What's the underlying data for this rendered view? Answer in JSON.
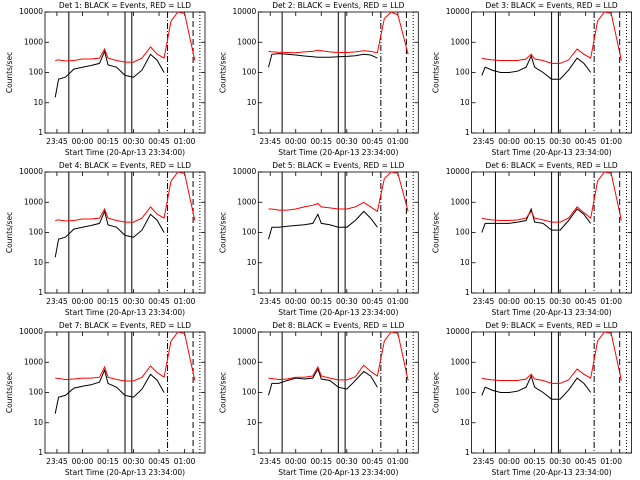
{
  "chart_data": [
    {
      "type": "line",
      "title": "Det 1: BLACK = Events, RED = LLD",
      "ylabel": "Counts/sec",
      "xlabel": "Start Time (20-Apr-13 23:34:00)",
      "log_y": true,
      "x": [
        "23:44",
        "23:46",
        "23:50",
        "23:55",
        "00:00",
        "00:05",
        "00:10",
        "00:13",
        "00:15",
        "00:20",
        "00:25",
        "00:30",
        "00:35",
        "00:40",
        "00:44",
        "00:48",
        "00:52",
        "00:56",
        "01:00",
        "01:06"
      ],
      "series": [
        {
          "color": "#000000",
          "values": [
            15,
            60,
            70,
            130,
            150,
            170,
            200,
            500,
            180,
            150,
            80,
            70,
            120,
            400,
            250,
            100,
            null,
            null,
            null,
            null
          ]
        },
        {
          "color": "#ff0000",
          "values": [
            250,
            260,
            240,
            250,
            280,
            280,
            300,
            600,
            300,
            250,
            220,
            220,
            300,
            700,
            400,
            300,
            5000,
            10000,
            9000,
            250
          ]
        }
      ],
      "xlim": [
        "23:38",
        "01:12"
      ],
      "xticks": [
        "23:45",
        "00:00",
        "00:15",
        "00:30",
        "00:45",
        "01:00"
      ],
      "ylim": [
        1,
        10000
      ],
      "yticks": [
        1,
        10,
        100,
        1000,
        10000
      ],
      "vlines": [
        {
          "x": "23:52",
          "dash": "solid"
        },
        {
          "x": "00:25",
          "dash": "solid"
        },
        {
          "x": "00:29",
          "dash": "solid"
        },
        {
          "x": "00:50",
          "dash": "6 2 1 2"
        },
        {
          "x": "01:05",
          "dash": "6 3"
        },
        {
          "x": "01:09",
          "dash": "1 2"
        }
      ]
    },
    {
      "type": "line",
      "title": "Det 2: BLACK = Events, RED = LLD",
      "ylabel": "Counts/sec",
      "xlabel": "Start Time (20-Apr-13 23:34:00)",
      "log_y": true,
      "x": [
        "23:44",
        "23:46",
        "23:50",
        "23:55",
        "00:00",
        "00:05",
        "00:10",
        "00:13",
        "00:15",
        "00:20",
        "00:25",
        "00:30",
        "00:35",
        "00:40",
        "00:44",
        "00:48",
        "00:52",
        "00:56",
        "01:00",
        "01:06"
      ],
      "series": [
        {
          "color": "#000000",
          "values": [
            150,
            400,
            420,
            400,
            380,
            350,
            330,
            320,
            320,
            320,
            330,
            340,
            360,
            400,
            380,
            300,
            null,
            null,
            null,
            null
          ]
        },
        {
          "color": "#ff0000",
          "values": [
            500,
            480,
            470,
            460,
            450,
            480,
            500,
            550,
            520,
            480,
            460,
            460,
            480,
            520,
            500,
            450,
            6000,
            10000,
            8000,
            400
          ]
        }
      ],
      "xlim": [
        "23:38",
        "01:12"
      ],
      "xticks": [
        "23:45",
        "00:00",
        "00:15",
        "00:30",
        "00:45",
        "01:00"
      ],
      "ylim": [
        1,
        10000
      ],
      "yticks": [
        1,
        10,
        100,
        1000,
        10000
      ],
      "vlines": [
        {
          "x": "23:52",
          "dash": "solid"
        },
        {
          "x": "00:25",
          "dash": "solid"
        },
        {
          "x": "00:29",
          "dash": "solid"
        },
        {
          "x": "00:50",
          "dash": "6 2 1 2"
        },
        {
          "x": "01:05",
          "dash": "6 3"
        },
        {
          "x": "01:09",
          "dash": "1 2"
        }
      ]
    },
    {
      "type": "line",
      "title": "Det 3: BLACK = Events, RED = LLD",
      "ylabel": "Counts/sec",
      "xlabel": "Start Time (20-Apr-13 23:34:00)",
      "log_y": true,
      "x": [
        "23:44",
        "23:46",
        "23:50",
        "23:55",
        "00:00",
        "00:05",
        "00:10",
        "00:13",
        "00:15",
        "00:20",
        "00:25",
        "00:30",
        "00:35",
        "00:40",
        "00:44",
        "00:48",
        "00:52",
        "00:56",
        "01:00",
        "01:06"
      ],
      "series": [
        {
          "color": "#000000",
          "values": [
            80,
            150,
            120,
            100,
            100,
            110,
            150,
            350,
            150,
            100,
            60,
            60,
            120,
            300,
            200,
            100,
            null,
            null,
            null,
            null
          ]
        },
        {
          "color": "#ff0000",
          "values": [
            300,
            280,
            260,
            250,
            250,
            250,
            280,
            400,
            280,
            250,
            200,
            200,
            260,
            600,
            400,
            300,
            5000,
            10000,
            9000,
            250
          ]
        }
      ],
      "xlim": [
        "23:38",
        "01:12"
      ],
      "xticks": [
        "23:45",
        "00:00",
        "00:15",
        "00:30",
        "00:45",
        "01:00"
      ],
      "ylim": [
        1,
        10000
      ],
      "yticks": [
        1,
        10,
        100,
        1000,
        10000
      ],
      "vlines": [
        {
          "x": "23:52",
          "dash": "solid"
        },
        {
          "x": "00:25",
          "dash": "solid"
        },
        {
          "x": "00:29",
          "dash": "solid"
        },
        {
          "x": "00:50",
          "dash": "6 2 1 2"
        },
        {
          "x": "01:05",
          "dash": "6 3"
        },
        {
          "x": "01:09",
          "dash": "1 2"
        }
      ]
    },
    {
      "type": "line",
      "title": "Det 4: BLACK = Events, RED = LLD",
      "ylabel": "Counts/sec",
      "xlabel": "Start Time (20-Apr-13 23:34:00)",
      "log_y": true,
      "x": [
        "23:44",
        "23:46",
        "23:50",
        "23:55",
        "00:00",
        "00:05",
        "00:10",
        "00:13",
        "00:15",
        "00:20",
        "00:25",
        "00:30",
        "00:35",
        "00:40",
        "00:44",
        "00:48",
        "00:52",
        "00:56",
        "01:00",
        "01:06"
      ],
      "series": [
        {
          "color": "#000000",
          "values": [
            15,
            60,
            70,
            130,
            150,
            170,
            200,
            500,
            180,
            150,
            80,
            70,
            120,
            400,
            250,
            100,
            null,
            null,
            null,
            null
          ]
        },
        {
          "color": "#ff0000",
          "values": [
            250,
            260,
            240,
            250,
            280,
            280,
            300,
            600,
            300,
            250,
            220,
            220,
            300,
            700,
            400,
            300,
            5000,
            10000,
            9000,
            250
          ]
        }
      ],
      "xlim": [
        "23:38",
        "01:12"
      ],
      "xticks": [
        "23:45",
        "00:00",
        "00:15",
        "00:30",
        "00:45",
        "01:00"
      ],
      "ylim": [
        1,
        10000
      ],
      "yticks": [
        1,
        10,
        100,
        1000,
        10000
      ],
      "vlines": [
        {
          "x": "23:52",
          "dash": "solid"
        },
        {
          "x": "00:25",
          "dash": "solid"
        },
        {
          "x": "00:29",
          "dash": "solid"
        },
        {
          "x": "00:50",
          "dash": "6 2 1 2"
        },
        {
          "x": "01:05",
          "dash": "6 3"
        },
        {
          "x": "01:09",
          "dash": "1 2"
        }
      ]
    },
    {
      "type": "line",
      "title": "Det 5: BLACK = Events, RED = LLD",
      "ylabel": "Counts/sec",
      "xlabel": "Start Time (20-Apr-13 23:34:00)",
      "log_y": true,
      "x": [
        "23:44",
        "23:46",
        "23:50",
        "23:55",
        "00:00",
        "00:05",
        "00:10",
        "00:13",
        "00:15",
        "00:20",
        "00:25",
        "00:30",
        "00:35",
        "00:40",
        "00:44",
        "00:48",
        "00:52",
        "00:56",
        "01:00",
        "01:06"
      ],
      "series": [
        {
          "color": "#000000",
          "values": [
            60,
            150,
            150,
            160,
            170,
            180,
            200,
            400,
            200,
            180,
            150,
            150,
            250,
            500,
            300,
            150,
            null,
            null,
            null,
            null
          ]
        },
        {
          "color": "#ff0000",
          "values": [
            600,
            600,
            550,
            550,
            600,
            700,
            800,
            900,
            700,
            650,
            600,
            600,
            700,
            1000,
            700,
            500,
            6000,
            10000,
            9000,
            500
          ]
        }
      ],
      "xlim": [
        "23:38",
        "01:12"
      ],
      "xticks": [
        "23:45",
        "00:00",
        "00:15",
        "00:30",
        "00:45",
        "01:00"
      ],
      "ylim": [
        1,
        10000
      ],
      "yticks": [
        1,
        10,
        100,
        1000,
        10000
      ],
      "vlines": [
        {
          "x": "23:52",
          "dash": "solid"
        },
        {
          "x": "00:25",
          "dash": "solid"
        },
        {
          "x": "00:29",
          "dash": "solid"
        },
        {
          "x": "00:50",
          "dash": "6 2 1 2"
        },
        {
          "x": "01:05",
          "dash": "6 3"
        },
        {
          "x": "01:09",
          "dash": "1 2"
        }
      ]
    },
    {
      "type": "line",
      "title": "Det 6: BLACK = Events, RED = LLD",
      "ylabel": "Counts/sec",
      "xlabel": "Start Time (20-Apr-13 23:34:00)",
      "log_y": true,
      "x": [
        "23:44",
        "23:46",
        "23:50",
        "23:55",
        "00:00",
        "00:05",
        "00:10",
        "00:13",
        "00:15",
        "00:20",
        "00:25",
        "00:30",
        "00:35",
        "00:40",
        "00:44",
        "00:48",
        "00:52",
        "00:56",
        "01:00",
        "01:06"
      ],
      "series": [
        {
          "color": "#000000",
          "values": [
            100,
            200,
            200,
            200,
            200,
            220,
            250,
            600,
            220,
            200,
            120,
            120,
            250,
            600,
            400,
            200,
            null,
            null,
            null,
            null
          ]
        },
        {
          "color": "#ff0000",
          "values": [
            300,
            280,
            260,
            250,
            250,
            260,
            300,
            500,
            300,
            260,
            220,
            220,
            300,
            700,
            450,
            300,
            5000,
            10000,
            9000,
            250
          ]
        }
      ],
      "xlim": [
        "23:38",
        "01:12"
      ],
      "xticks": [
        "23:45",
        "00:00",
        "00:15",
        "00:30",
        "00:45",
        "01:00"
      ],
      "ylim": [
        1,
        10000
      ],
      "yticks": [
        1,
        10,
        100,
        1000,
        10000
      ],
      "vlines": [
        {
          "x": "23:52",
          "dash": "solid"
        },
        {
          "x": "00:25",
          "dash": "solid"
        },
        {
          "x": "00:29",
          "dash": "solid"
        },
        {
          "x": "00:50",
          "dash": "6 2 1 2"
        },
        {
          "x": "01:05",
          "dash": "6 3"
        },
        {
          "x": "01:09",
          "dash": "1 2"
        }
      ]
    },
    {
      "type": "line",
      "title": "Det 7: BLACK = Events, RED = LLD",
      "ylabel": "Counts/sec",
      "xlabel": "Start Time (20-Apr-13 23:34:00)",
      "log_y": true,
      "x": [
        "23:44",
        "23:46",
        "23:50",
        "23:55",
        "00:00",
        "00:05",
        "00:10",
        "00:13",
        "00:15",
        "00:20",
        "00:25",
        "00:30",
        "00:35",
        "00:40",
        "00:44",
        "00:48",
        "00:52",
        "00:56",
        "01:00",
        "01:06"
      ],
      "series": [
        {
          "color": "#000000",
          "values": [
            20,
            70,
            80,
            140,
            160,
            180,
            220,
            550,
            200,
            150,
            80,
            70,
            130,
            400,
            250,
            100,
            null,
            null,
            null,
            null
          ]
        },
        {
          "color": "#ff0000",
          "values": [
            300,
            290,
            270,
            280,
            300,
            300,
            320,
            700,
            320,
            270,
            240,
            240,
            320,
            750,
            450,
            320,
            5000,
            10000,
            9000,
            250
          ]
        }
      ],
      "xlim": [
        "23:38",
        "01:12"
      ],
      "xticks": [
        "23:45",
        "00:00",
        "00:15",
        "00:30",
        "00:45",
        "01:00"
      ],
      "ylim": [
        1,
        10000
      ],
      "yticks": [
        1,
        10,
        100,
        1000,
        10000
      ],
      "vlines": [
        {
          "x": "23:52",
          "dash": "solid"
        },
        {
          "x": "00:25",
          "dash": "solid"
        },
        {
          "x": "00:29",
          "dash": "solid"
        },
        {
          "x": "00:50",
          "dash": "6 2 1 2"
        },
        {
          "x": "01:05",
          "dash": "6 3"
        },
        {
          "x": "01:09",
          "dash": "1 2"
        }
      ]
    },
    {
      "type": "line",
      "title": "Det 8: BLACK = Events, RED = LLD",
      "ylabel": "Counts/sec",
      "xlabel": "Start Time (20-Apr-13 23:34:00)",
      "log_y": true,
      "x": [
        "23:44",
        "23:46",
        "23:50",
        "23:55",
        "00:00",
        "00:05",
        "00:10",
        "00:13",
        "00:15",
        "00:20",
        "00:25",
        "00:30",
        "00:35",
        "00:40",
        "00:44",
        "00:48",
        "00:52",
        "00:56",
        "01:00",
        "01:06"
      ],
      "series": [
        {
          "color": "#000000",
          "values": [
            80,
            200,
            200,
            250,
            300,
            280,
            300,
            600,
            280,
            250,
            150,
            130,
            250,
            500,
            350,
            150,
            null,
            null,
            null,
            null
          ]
        },
        {
          "color": "#ff0000",
          "values": [
            300,
            290,
            270,
            280,
            320,
            320,
            350,
            700,
            350,
            300,
            260,
            260,
            330,
            800,
            500,
            350,
            5000,
            10000,
            9000,
            250
          ]
        }
      ],
      "xlim": [
        "23:38",
        "01:12"
      ],
      "xticks": [
        "23:45",
        "00:00",
        "00:15",
        "00:30",
        "00:45",
        "01:00"
      ],
      "ylim": [
        1,
        10000
      ],
      "yticks": [
        1,
        10,
        100,
        1000,
        10000
      ],
      "vlines": [
        {
          "x": "23:52",
          "dash": "solid"
        },
        {
          "x": "00:25",
          "dash": "solid"
        },
        {
          "x": "00:29",
          "dash": "solid"
        },
        {
          "x": "00:50",
          "dash": "6 2 1 2"
        },
        {
          "x": "01:05",
          "dash": "6 3"
        },
        {
          "x": "01:09",
          "dash": "1 2"
        }
      ]
    },
    {
      "type": "line",
      "title": "Det 9: BLACK = Events, RED = LLD",
      "ylabel": "Counts/sec",
      "xlabel": "Start Time (20-Apr-13 23:34:00)",
      "log_y": true,
      "x": [
        "23:44",
        "23:46",
        "23:50",
        "23:55",
        "00:00",
        "00:05",
        "00:10",
        "00:13",
        "00:15",
        "00:20",
        "00:25",
        "00:30",
        "00:35",
        "00:40",
        "00:44",
        "00:48",
        "00:52",
        "00:56",
        "01:00",
        "01:06"
      ],
      "series": [
        {
          "color": "#000000",
          "values": [
            80,
            150,
            120,
            100,
            100,
            110,
            150,
            350,
            150,
            100,
            60,
            60,
            120,
            300,
            200,
            100,
            null,
            null,
            null,
            null
          ]
        },
        {
          "color": "#ff0000",
          "values": [
            300,
            280,
            260,
            250,
            250,
            250,
            280,
            400,
            280,
            250,
            200,
            200,
            260,
            600,
            400,
            300,
            5000,
            10000,
            9000,
            250
          ]
        }
      ],
      "xlim": [
        "23:38",
        "01:12"
      ],
      "xticks": [
        "23:45",
        "00:00",
        "00:15",
        "00:30",
        "00:45",
        "01:00"
      ],
      "ylim": [
        1,
        10000
      ],
      "yticks": [
        1,
        10,
        100,
        1000,
        10000
      ],
      "vlines": [
        {
          "x": "23:52",
          "dash": "solid"
        },
        {
          "x": "00:25",
          "dash": "solid"
        },
        {
          "x": "00:29",
          "dash": "solid"
        },
        {
          "x": "00:50",
          "dash": "6 2 1 2"
        },
        {
          "x": "01:05",
          "dash": "6 3"
        },
        {
          "x": "01:09",
          "dash": "1 2"
        }
      ]
    }
  ]
}
